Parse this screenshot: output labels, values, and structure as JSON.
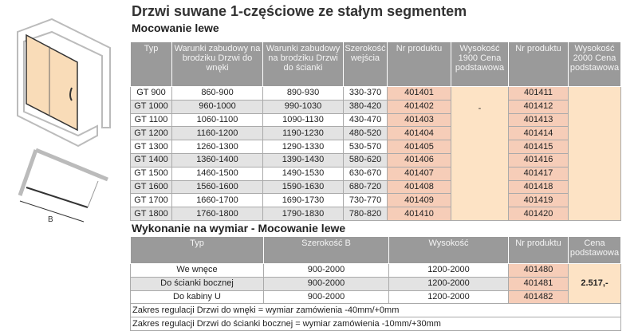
{
  "title": "Drzwi suwane 1-częściowe ze stałym segmentem",
  "section1": {
    "title": "Mocowanie lewe",
    "headers": [
      "Typ",
      "Warunki zabudowy na brodziku Drzwi do wnęki",
      "Warunki zabudowy na brodziku Drzwi do ścianki",
      "Szerokość wejścia",
      "Nr produktu",
      "Wysokość 1900 Cena podstawowa",
      "Nr produktu",
      "Wysokość 2000 Cena podstawowa"
    ],
    "price1900": "-",
    "rows": [
      [
        "GT 900",
        "860-900",
        "890-930",
        "330-370",
        "401401",
        "401411"
      ],
      [
        "GT 1000",
        "960-1000",
        "990-1030",
        "380-420",
        "401402",
        "401412"
      ],
      [
        "GT 1100",
        "1060-1100",
        "1090-1130",
        "430-470",
        "401403",
        "401413"
      ],
      [
        "GT 1200",
        "1160-1200",
        "1190-1230",
        "480-520",
        "401404",
        "401414"
      ],
      [
        "GT 1300",
        "1260-1300",
        "1290-1330",
        "530-570",
        "401405",
        "401415"
      ],
      [
        "GT 1400",
        "1360-1400",
        "1390-1430",
        "580-620",
        "401406",
        "401416"
      ],
      [
        "GT 1500",
        "1460-1500",
        "1490-1530",
        "630-670",
        "401407",
        "401417"
      ],
      [
        "GT 1600",
        "1560-1600",
        "1590-1630",
        "680-720",
        "401408",
        "401418"
      ],
      [
        "GT 1700",
        "1660-1700",
        "1690-1730",
        "730-770",
        "401409",
        "401419"
      ],
      [
        "GT 1800",
        "1760-1800",
        "1790-1830",
        "780-820",
        "401410",
        "401420"
      ]
    ]
  },
  "section2": {
    "title": "Wykonanie na wymiar - Mocowanie lewe",
    "headers": [
      "Typ",
      "Szerokość B",
      "Wysokość",
      "Nr produktu",
      "Cena podstawowa"
    ],
    "price": "2.517,-",
    "rows": [
      [
        "We wnęce",
        "900-2000",
        "1200-2000",
        "401480"
      ],
      [
        "Do ścianki bocznej",
        "900-2000",
        "1200-2000",
        "401481"
      ],
      [
        "Do kabiny U",
        "900-2000",
        "1200-2000",
        "401482"
      ]
    ],
    "notes": [
      "Zakres regulacji Drzwi do wnęki = wymiar zamówienia -40mm/+0mm",
      "Zakres regulacji Drzwi do ścianki bocznej = wymiar zamówienia -10mm/+30mm"
    ]
  },
  "illustration": {
    "dimension_label": "B"
  }
}
